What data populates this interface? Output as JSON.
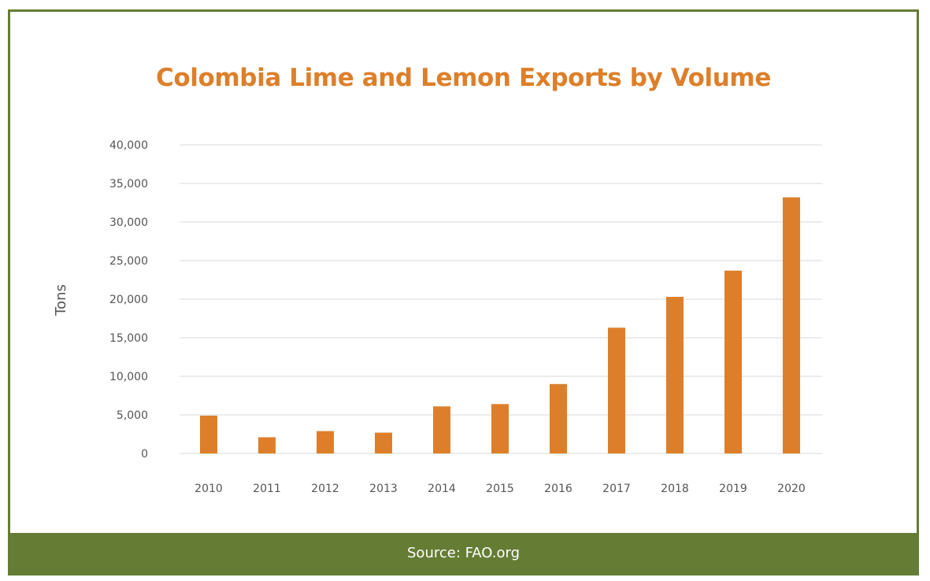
{
  "chart_data": {
    "type": "bar",
    "title": "Colombia Lime and Lemon Exports by Volume",
    "xlabel": "",
    "ylabel": "Tons",
    "categories": [
      "2010",
      "2011",
      "2012",
      "2013",
      "2014",
      "2015",
      "2016",
      "2017",
      "2018",
      "2019",
      "2020"
    ],
    "values": [
      4900,
      2100,
      2900,
      2700,
      6100,
      6400,
      9000,
      16300,
      20300,
      23700,
      33200
    ],
    "ylim": [
      0,
      40000
    ],
    "yticks": [
      0,
      5000,
      10000,
      15000,
      20000,
      25000,
      30000,
      35000,
      40000
    ],
    "ytick_labels": [
      "0",
      "5,000",
      "10,000",
      "15,000",
      "20,000",
      "25,000",
      "30,000",
      "35,000",
      "40,000"
    ],
    "grid": true,
    "legend": "none",
    "bar_color": "#dd7f2a",
    "grid_color": "#d9d9d9"
  },
  "footer": {
    "source": "Source: FAO.org"
  },
  "colors": {
    "frame": "#657c34",
    "title": "#dd7f2a"
  }
}
